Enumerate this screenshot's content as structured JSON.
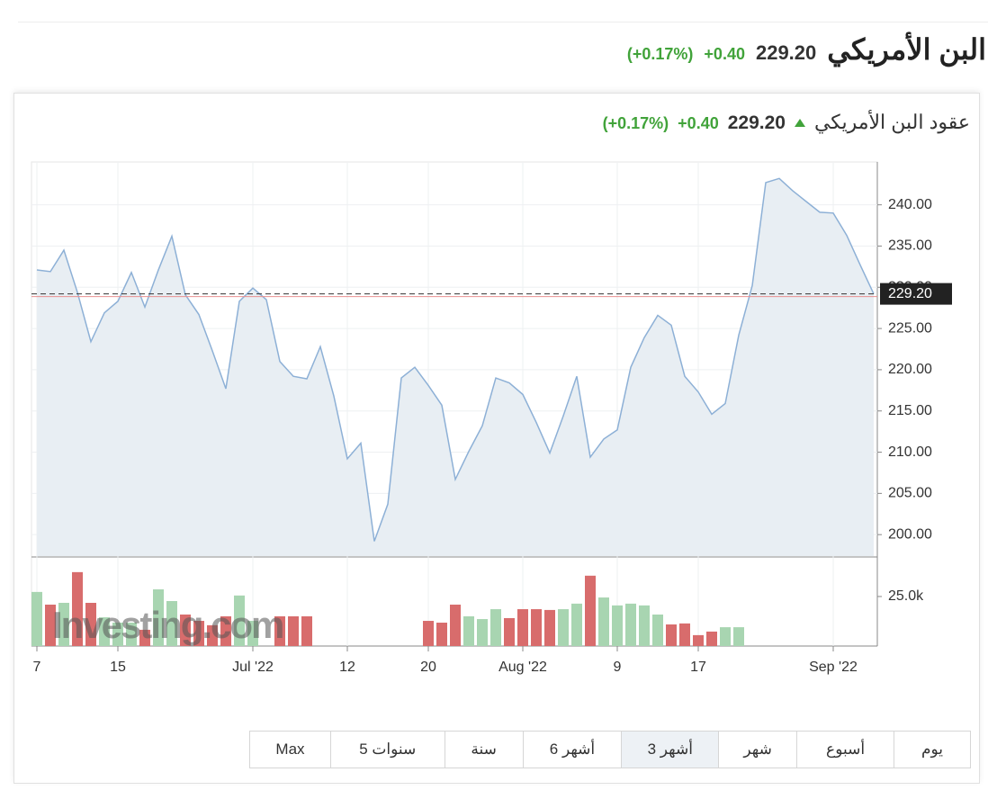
{
  "header": {
    "title": "البن الأمريكي",
    "price": "229.20",
    "change": "+0.40",
    "change_pct": "(+0.17%)"
  },
  "chart_data": {
    "type": "line",
    "title": "عقود البن الأمريكي",
    "quote": {
      "price": "229.20",
      "change": "+0.40",
      "change_pct": "(+0.17%)"
    },
    "categories": [
      "7",
      null,
      null,
      null,
      null,
      null,
      "15",
      null,
      null,
      null,
      null,
      null,
      null,
      null,
      null,
      null,
      "Jul '22",
      null,
      null,
      null,
      null,
      null,
      null,
      "12",
      null,
      null,
      null,
      null,
      null,
      "20",
      null,
      null,
      null,
      null,
      null,
      null,
      "Aug '22",
      null,
      null,
      null,
      null,
      null,
      null,
      "9",
      null,
      null,
      null,
      null,
      null,
      "17",
      null,
      null,
      null,
      null,
      null,
      null,
      null,
      null,
      null,
      "Sep '22",
      null,
      null,
      null
    ],
    "values": [
      232.1,
      231.9,
      234.5,
      229.4,
      223.4,
      226.9,
      228.3,
      231.8,
      227.6,
      232.1,
      236.2,
      229.1,
      226.7,
      222.3,
      217.7,
      228.3,
      229.9,
      228.5,
      221.0,
      219.2,
      218.9,
      222.8,
      216.8,
      209.2,
      211.1,
      199.2,
      203.7,
      219.0,
      220.3,
      218.1,
      215.7,
      206.7,
      210.1,
      213.2,
      219.0,
      218.4,
      217.0,
      213.6,
      209.9,
      214.4,
      219.2,
      209.4,
      211.6,
      212.7,
      220.3,
      223.9,
      226.6,
      225.4,
      219.2,
      217.3,
      214.6,
      215.9,
      224.2,
      230.2,
      242.7,
      243.2,
      241.7,
      240.4,
      239.1,
      239.0,
      236.3,
      232.7,
      229.2
    ],
    "color": "#8db0d6",
    "fill": "#e8eef3",
    "ylim": [
      197.4,
      245.2
    ],
    "yticks": [
      {
        "value": 200,
        "label": "200.00"
      },
      {
        "value": 205,
        "label": "205.00"
      },
      {
        "value": 210,
        "label": "210.00"
      },
      {
        "value": 215,
        "label": "215.00"
      },
      {
        "value": 220,
        "label": "220.00"
      },
      {
        "value": 225,
        "label": "225.00"
      },
      {
        "value": 230,
        "label": "230.00"
      },
      {
        "value": 235,
        "label": "235.00"
      },
      {
        "value": 240,
        "label": "240.00"
      }
    ],
    "last_price": {
      "value": 229.2,
      "label": "229.20"
    },
    "grid": true,
    "watermark": "Investing.com",
    "volume": {
      "type": "bar",
      "values": [
        27300,
        20900,
        21800,
        37300,
        21800,
        14500,
        11800,
        11800,
        8200,
        28600,
        22700,
        15900,
        12700,
        10500,
        15000,
        25500,
        12700,
        null,
        15000,
        15000,
        15000,
        null,
        null,
        null,
        null,
        null,
        null,
        null,
        null,
        12700,
        11800,
        20900,
        15000,
        13600,
        18600,
        14100,
        18600,
        18600,
        18200,
        18600,
        21400,
        35500,
        24500,
        20500,
        21400,
        20500,
        15900,
        10900,
        11400,
        5500,
        7300,
        9500,
        9500,
        null,
        null,
        null,
        null,
        null,
        null,
        null,
        null,
        null,
        null
      ],
      "colors": [
        "#a8d5b1",
        "#d86c6c",
        "#a8d5b1",
        "#d86c6c",
        "#d86c6c",
        "#a8d5b1",
        "#a8d5b1",
        "#a8d5b1",
        "#d86c6c",
        "#a8d5b1",
        "#a8d5b1",
        "#d86c6c",
        "#d86c6c",
        "#d86c6c",
        "#d86c6c",
        "#a8d5b1",
        "#a8d5b1",
        null,
        "#d86c6c",
        "#d86c6c",
        "#d86c6c",
        null,
        null,
        null,
        null,
        null,
        null,
        null,
        null,
        "#d86c6c",
        "#d86c6c",
        "#d86c6c",
        "#a8d5b1",
        "#a8d5b1",
        "#a8d5b1",
        "#d86c6c",
        "#d86c6c",
        "#d86c6c",
        "#d86c6c",
        "#a8d5b1",
        "#a8d5b1",
        "#d86c6c",
        "#a8d5b1",
        "#a8d5b1",
        "#a8d5b1",
        "#a8d5b1",
        "#a8d5b1",
        "#d86c6c",
        "#d86c6c",
        "#d86c6c",
        "#d86c6c",
        "#a8d5b1",
        "#a8d5b1",
        null,
        null,
        null,
        null,
        null,
        null,
        null,
        null,
        null,
        null
      ],
      "ylim": [
        0,
        44500
      ],
      "yticks": [
        {
          "value": 25000,
          "label": "25.0k"
        }
      ]
    }
  },
  "range_buttons": {
    "items": [
      "يوم",
      "أسبوع",
      "شهر",
      "3 أشهر",
      "6 أشهر",
      "سنة",
      "5 سنوات",
      "Max"
    ],
    "active": 3
  }
}
